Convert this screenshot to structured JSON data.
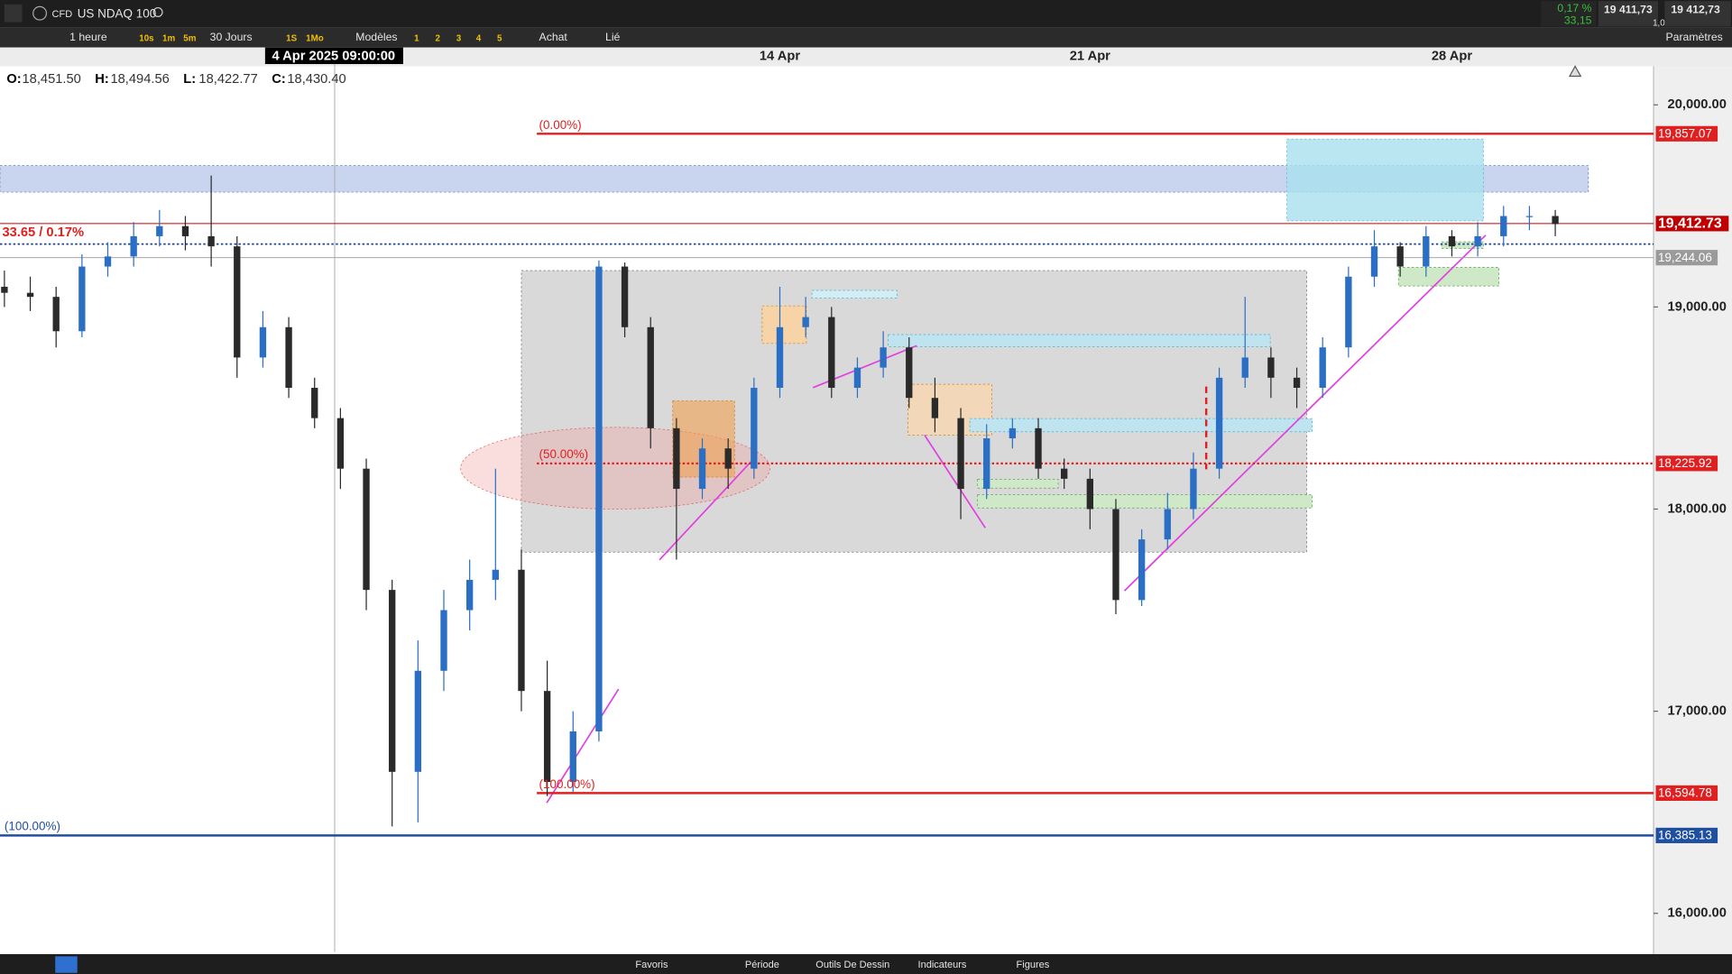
{
  "toolbar": {
    "badge": "CFD",
    "symbol": "US NDAQ 100",
    "change_pct": "0,17 %",
    "change_pts": "33,15",
    "bid": "19 411,73",
    "spread": "1,00",
    "ask": "19 412,73"
  },
  "toolbar2": {
    "interval": "1 heure",
    "intervals": [
      "10s",
      "1m",
      "5m"
    ],
    "range": "30 Jours",
    "periods": [
      "1S",
      "1Mo"
    ],
    "templates": "Modèles",
    "slots": [
      "1",
      "2",
      "3",
      "4",
      "5"
    ],
    "buy": "Achat",
    "link": "Lié",
    "settings": "Paramètres"
  },
  "footer": [
    "Favoris",
    "Période",
    "Outils De Dessin",
    "Indicateurs",
    "Figures"
  ],
  "chart_data": {
    "type": "candlestick",
    "crosshair_label": "4 Apr 2025 09:00:00",
    "ohlc_legend": [
      {
        "key": "O:",
        "value": "18,451.50"
      },
      {
        "key": "H:",
        "value": "18,494.56"
      },
      {
        "key": "L:",
        "value": "18,422.77"
      },
      {
        "key": "C:",
        "value": "18,430.40"
      }
    ],
    "change_label": "33.65 / 0.17%",
    "categories": [
      null,
      null,
      null,
      null,
      null,
      null,
      null,
      null,
      null,
      null,
      null,
      null,
      null,
      null,
      null,
      null,
      null,
      null,
      null,
      null,
      null,
      null,
      null,
      null,
      null,
      null,
      null,
      null,
      null,
      null,
      "14 Apr",
      null,
      null,
      null,
      null,
      null,
      null,
      null,
      null,
      null,
      null,
      null,
      "21 Apr",
      null,
      null,
      null,
      null,
      null,
      null,
      null,
      null,
      null,
      null,
      null,
      null,
      null,
      "28 Apr",
      null,
      null,
      null,
      null
    ],
    "open": [
      19100,
      19070,
      19050,
      18880,
      19200,
      19250,
      19350,
      19400,
      19350,
      19300,
      18750,
      18900,
      18600,
      18450,
      18200,
      17600,
      16700,
      17200,
      17500,
      17650,
      17700,
      17100,
      16650,
      16900,
      19200,
      18900,
      18400,
      18100,
      18300,
      18200,
      18600,
      18900,
      18950,
      18600,
      18700,
      18800,
      18550,
      18450,
      18100,
      18350,
      18400,
      18200,
      18150,
      18000,
      17550,
      17850,
      18000,
      18200,
      18650,
      18750,
      18650,
      18600,
      18800,
      19150,
      19300,
      19200,
      19350,
      19300,
      19350,
      19450,
      19450
    ],
    "high": [
      19180,
      19150,
      19100,
      19260,
      19320,
      19420,
      19480,
      19450,
      19650,
      19350,
      18980,
      18950,
      18650,
      18500,
      18250,
      17650,
      17350,
      17600,
      17750,
      18200,
      17800,
      17250,
      17000,
      19230,
      19220,
      18950,
      18450,
      18350,
      18350,
      18650,
      19100,
      19050,
      19000,
      18750,
      18880,
      18850,
      18650,
      18500,
      18420,
      18450,
      18450,
      18250,
      18200,
      18050,
      17900,
      18080,
      18280,
      18700,
      19050,
      18800,
      18700,
      18850,
      19200,
      19380,
      19320,
      19400,
      19380,
      19420,
      19500,
      19500,
      19480
    ],
    "low": [
      19000,
      18980,
      18800,
      18850,
      19150,
      19200,
      19300,
      19280,
      19200,
      18650,
      18700,
      18550,
      18400,
      18100,
      17500,
      16430,
      16450,
      17100,
      17400,
      17550,
      17000,
      16580,
      16600,
      16850,
      18850,
      18300,
      17750,
      18050,
      18100,
      18150,
      18550,
      18850,
      18550,
      18550,
      18650,
      18500,
      18380,
      17950,
      18050,
      18300,
      18150,
      18100,
      17900,
      17480,
      17520,
      17800,
      17950,
      18150,
      18600,
      18550,
      18500,
      18550,
      18750,
      19100,
      19150,
      19150,
      19250,
      19250,
      19300,
      19380,
      19350
    ],
    "close": [
      19070,
      19050,
      18880,
      19200,
      19250,
      19350,
      19400,
      19350,
      19300,
      18750,
      18900,
      18600,
      18450,
      18200,
      17600,
      16700,
      17200,
      17500,
      17650,
      17700,
      17100,
      16650,
      16900,
      19200,
      18900,
      18400,
      18100,
      18300,
      18200,
      18600,
      18900,
      18950,
      18600,
      18700,
      18800,
      18550,
      18450,
      18100,
      18350,
      18400,
      18200,
      18150,
      18000,
      17550,
      17850,
      18000,
      18200,
      18650,
      18750,
      18650,
      18600,
      18800,
      19150,
      19300,
      19200,
      19350,
      19300,
      19350,
      19450,
      19450,
      19410
    ],
    "up_color": "#2b6fc4",
    "down_color": "#2a2a2a",
    "ylim": [
      15809,
      20191
    ],
    "yticks": [
      {
        "value": 16000,
        "label": "16,000.00"
      },
      {
        "value": 17000,
        "label": "17,000.00"
      },
      {
        "value": 18000,
        "label": "18,000.00"
      },
      {
        "value": 19000,
        "label": "19,000.00"
      },
      {
        "value": 20000,
        "label": "20,000.00"
      }
    ],
    "grid": false,
    "levels": [
      {
        "value": 19857.07,
        "label": "19,857.07",
        "color": "#e02020"
      },
      {
        "value": 19412.73,
        "label": "19,412.73",
        "color": "#c00000"
      },
      {
        "value": 19244.06,
        "label": "19,244.06",
        "color": "#9a9a9a"
      },
      {
        "value": 18225.92,
        "label": "18,225.92",
        "color": "#e02020"
      },
      {
        "value": 16594.78,
        "label": "16,594.78",
        "color": "#e02020"
      },
      {
        "value": 16385.13,
        "label": "16,385.13",
        "color": "#1f4fa0"
      }
    ],
    "fib_labels": [
      "(0.00%)",
      "(50.00%)",
      "(100.00%)",
      "(100.00%)"
    ]
  }
}
